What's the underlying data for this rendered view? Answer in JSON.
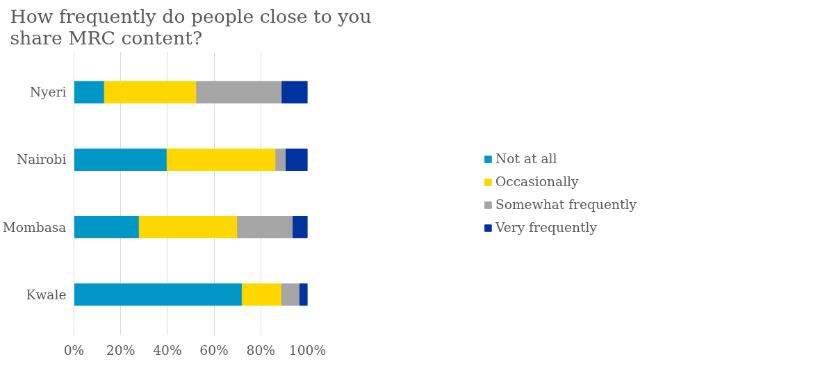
{
  "chart_data": {
    "type": "bar",
    "orientation": "horizontal",
    "stacked": true,
    "title": "How frequently do people close to you\nshare MRC content?",
    "categories": [
      "Nyeri",
      "Nairobi",
      "Mombasa",
      "Kwale"
    ],
    "series": [
      {
        "name": "Not at all",
        "color": "#0096c6",
        "values": [
          13.0,
          39.8,
          27.9,
          72.0
        ]
      },
      {
        "name": "Occasionally",
        "color": "#ffd700",
        "values": [
          39.5,
          46.6,
          42.1,
          16.9
        ]
      },
      {
        "name": "Somewhat frequently",
        "color": "#a5a5a5",
        "values": [
          36.6,
          4.4,
          23.8,
          7.8
        ]
      },
      {
        "name": "Very frequently",
        "color": "#0033a0",
        "values": [
          10.9,
          9.2,
          6.2,
          3.3
        ]
      }
    ],
    "xlim": [
      0,
      100
    ],
    "xticks": [
      {
        "value": 0,
        "label": "0%"
      },
      {
        "value": 20,
        "label": "20%"
      },
      {
        "value": 40,
        "label": "40%"
      },
      {
        "value": 60,
        "label": "60%"
      },
      {
        "value": 80,
        "label": "80%"
      },
      {
        "value": 100,
        "label": "100%"
      }
    ],
    "grid": "x",
    "legend": "right"
  }
}
